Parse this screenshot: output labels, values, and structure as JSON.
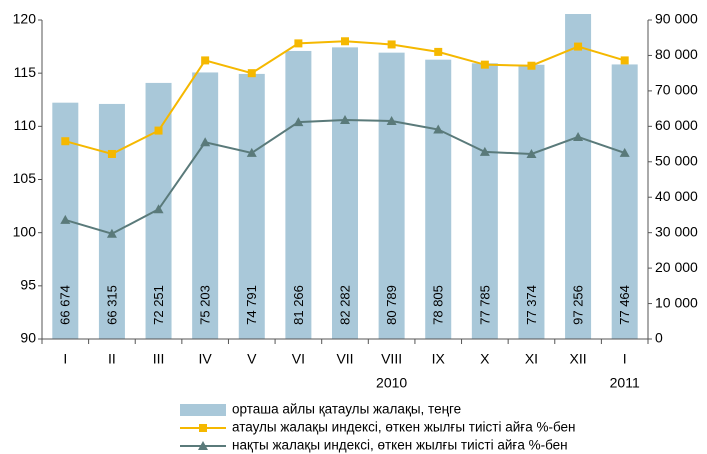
{
  "chart_data": {
    "type": "bar-line",
    "categories": [
      "I",
      "II",
      "III",
      "IV",
      "V",
      "VI",
      "VII",
      "VIII",
      "IX",
      "X",
      "XI",
      "XII",
      "I"
    ],
    "annotations": [
      "2010",
      "2011"
    ],
    "series": [
      {
        "name": "орташа айлы қатаулы жалақы, теңге",
        "type": "bar",
        "axis": "y2",
        "color": "#a9c8d9",
        "values": [
          66674,
          66315,
          72251,
          75203,
          74791,
          81266,
          82282,
          80789,
          78805,
          77785,
          77374,
          97256,
          77464
        ],
        "value_labels": [
          "66 674",
          "66 315",
          "72 251",
          "75 203",
          "74 791",
          "81 266",
          "82 282",
          "80 789",
          "78 805",
          "77 785",
          "77 374",
          "97 256",
          "77 464"
        ]
      },
      {
        "name": "атаулы жалақы индексі, өткен жылғы тиісті айға %-бен",
        "type": "line",
        "color": "#f5b800",
        "marker": "square",
        "values": [
          108.6,
          107.4,
          109.6,
          116.2,
          115.0,
          117.8,
          118.0,
          117.7,
          117.0,
          115.8,
          115.7,
          117.5,
          116.2
        ]
      },
      {
        "name": "нақты жалақы индексі, өткен жылғы тиісті айға %-бен",
        "type": "line",
        "color": "#5a7a7a",
        "marker": "triangle",
        "values": [
          101.2,
          99.9,
          102.2,
          108.5,
          107.5,
          110.4,
          110.6,
          110.5,
          109.7,
          107.6,
          107.4,
          109.0,
          107.5
        ]
      }
    ],
    "ylim": [
      90,
      120
    ],
    "yticks": [
      90,
      95,
      100,
      105,
      110,
      115,
      120
    ],
    "y2lim": [
      0,
      90000
    ],
    "y2ticks": [
      0,
      {
        "value": 10000,
        "label": "10 000"
      },
      {
        "value": 20000,
        "label": "20 000"
      },
      {
        "value": 30000,
        "label": "30 000"
      },
      {
        "value": 40000,
        "label": "40 000"
      },
      {
        "value": 50000,
        "label": "50 000"
      },
      {
        "value": 60000,
        "label": "60 000"
      },
      {
        "value": 70000,
        "label": "70 000"
      },
      {
        "value": 80000,
        "label": "80 000"
      },
      {
        "value": 90000,
        "label": "90 000"
      }
    ],
    "grid": false,
    "legend": "bottom"
  }
}
